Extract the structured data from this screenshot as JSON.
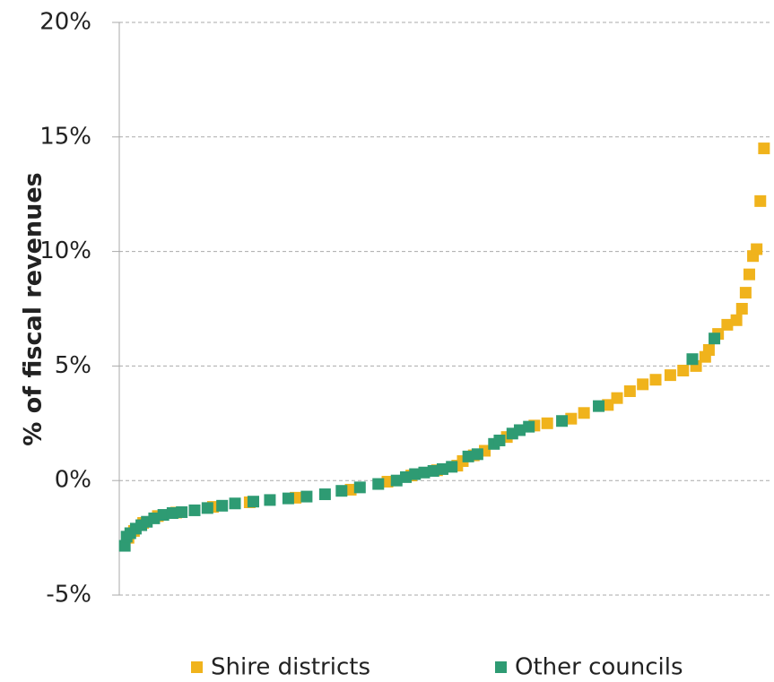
{
  "chart_data": {
    "type": "scatter",
    "ylabel": "% of fiscal revenues",
    "xlim": [
      -1,
      353
    ],
    "ylim": [
      -5,
      20
    ],
    "yticks": [
      {
        "value": -5,
        "label": "-5%"
      },
      {
        "value": 0,
        "label": "0%"
      },
      {
        "value": 5,
        "label": "5%"
      },
      {
        "value": 10,
        "label": "10%"
      },
      {
        "value": 15,
        "label": "15%"
      },
      {
        "value": 20,
        "label": "20%"
      }
    ],
    "grid": true,
    "legend": "bottom",
    "series": [
      {
        "name": "Shire districts",
        "color": "#f0b31c",
        "x": [
          4,
          7,
          12,
          20,
          30,
          50,
          70,
          95,
          125,
          145,
          158,
          172,
          183,
          186,
          192,
          198,
          210,
          225,
          232,
          245,
          252,
          265,
          270,
          277,
          284,
          291,
          299,
          306,
          313,
          318,
          320,
          325,
          330,
          335,
          338,
          340,
          342,
          344,
          346,
          348,
          350
        ],
        "values": [
          -2.5,
          -2.2,
          -1.85,
          -1.55,
          -1.4,
          -1.15,
          -0.95,
          -0.75,
          -0.4,
          -0.05,
          0.22,
          0.45,
          0.65,
          0.85,
          1.1,
          1.3,
          1.9,
          2.4,
          2.5,
          2.7,
          2.95,
          3.3,
          3.6,
          3.9,
          4.2,
          4.4,
          4.6,
          4.8,
          5.0,
          5.4,
          5.7,
          6.4,
          6.8,
          7.0,
          7.5,
          8.2,
          9.0,
          9.8,
          10.1,
          12.2,
          14.5
        ]
      },
      {
        "name": "Other councils",
        "color": "#2e9b73",
        "x": [
          2,
          3,
          5,
          8,
          11,
          14,
          18,
          23,
          28,
          33,
          40,
          47,
          55,
          62,
          72,
          81,
          91,
          101,
          111,
          120,
          130,
          140,
          150,
          155,
          160,
          165,
          170,
          175,
          180,
          189,
          194,
          203,
          206,
          213,
          217,
          222,
          240,
          260,
          311,
          323
        ],
        "values": [
          -2.85,
          -2.45,
          -2.3,
          -2.1,
          -1.95,
          -1.8,
          -1.65,
          -1.5,
          -1.42,
          -1.38,
          -1.3,
          -1.2,
          -1.1,
          -1.0,
          -0.92,
          -0.85,
          -0.78,
          -0.7,
          -0.6,
          -0.45,
          -0.3,
          -0.15,
          0.0,
          0.15,
          0.28,
          0.35,
          0.42,
          0.5,
          0.6,
          1.05,
          1.15,
          1.6,
          1.75,
          2.05,
          2.2,
          2.35,
          2.6,
          3.25,
          5.3,
          6.2
        ]
      }
    ]
  }
}
